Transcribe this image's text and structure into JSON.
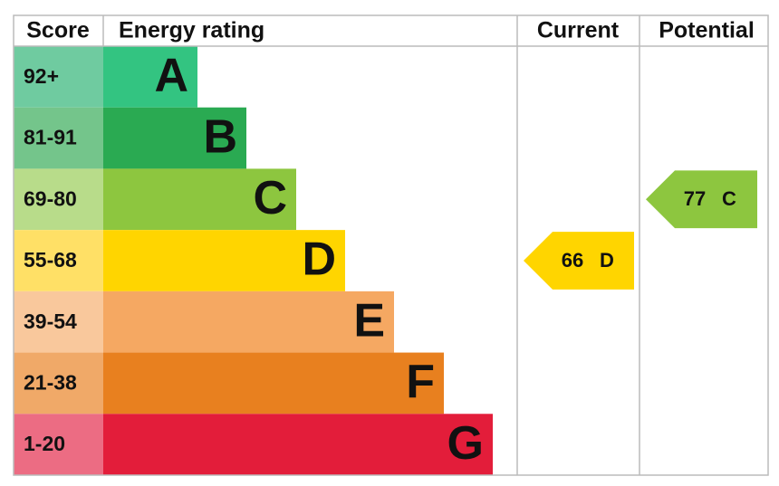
{
  "header": {
    "score": "Score",
    "rating": "Energy rating",
    "current": "Current",
    "potential": "Potential"
  },
  "bands": [
    {
      "score": "92+",
      "letter": "A"
    },
    {
      "score": "81-91",
      "letter": "B"
    },
    {
      "score": "69-80",
      "letter": "C"
    },
    {
      "score": "55-68",
      "letter": "D"
    },
    {
      "score": "39-54",
      "letter": "E"
    },
    {
      "score": "21-38",
      "letter": "F"
    },
    {
      "score": "1-20",
      "letter": "G"
    }
  ],
  "current": {
    "value": "66",
    "letter": "D"
  },
  "potential": {
    "value": "77",
    "letter": "C"
  }
}
